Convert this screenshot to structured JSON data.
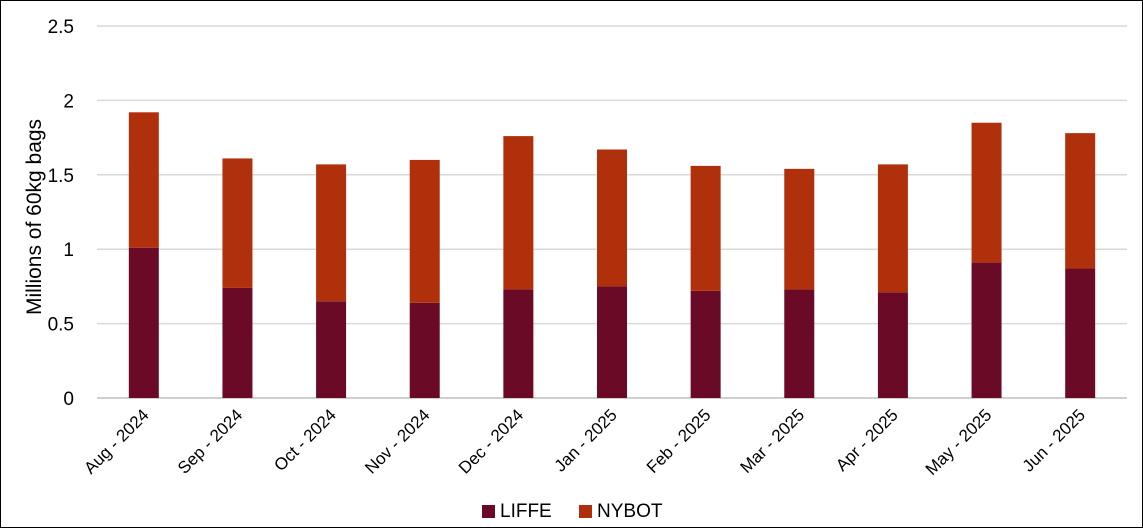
{
  "chart_data": {
    "type": "bar",
    "stacked": true,
    "categories": [
      "Aug - 2024",
      "Sep - 2024",
      "Oct - 2024",
      "Nov - 2024",
      "Dec - 2024",
      "Jan - 2025",
      "Feb - 2025",
      "Mar - 2025",
      "Apr - 2025",
      "May - 2025",
      "Jun - 2025"
    ],
    "series": [
      {
        "name": "LIFFE",
        "color": "#6b0a26",
        "values": [
          1.01,
          0.74,
          0.65,
          0.64,
          0.73,
          0.75,
          0.72,
          0.73,
          0.71,
          0.91,
          0.87
        ]
      },
      {
        "name": "NYBOT",
        "color": "#b0300c",
        "values": [
          0.91,
          0.87,
          0.92,
          0.96,
          1.03,
          0.92,
          0.84,
          0.81,
          0.86,
          0.94,
          0.91
        ]
      }
    ],
    "ylabel": "Millions of 60kg bags",
    "xlabel": "",
    "ylim": [
      0,
      2.5
    ],
    "yticks": [
      "0",
      "0.5",
      "1",
      "1.5",
      "2",
      "2.5"
    ],
    "grid": true,
    "legend_position": "bottom-center"
  }
}
